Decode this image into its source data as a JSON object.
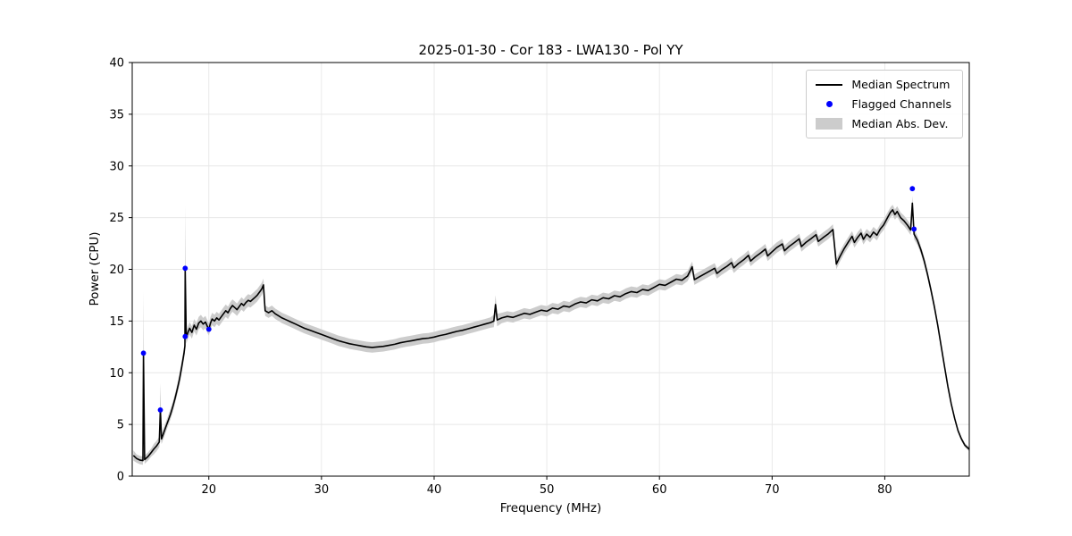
{
  "figure": {
    "title": "2025-01-30 - Cor 183 - LWA130 - Pol YY"
  },
  "chart_data": {
    "type": "line",
    "title": "2025-01-30 - Cor 183 - LWA130 - Pol YY",
    "xlabel": "Frequency (MHz)",
    "ylabel": "Power (CPU)",
    "xlim": [
      13.2,
      87.5
    ],
    "ylim": [
      0,
      40
    ],
    "xticks": [
      20,
      30,
      40,
      50,
      60,
      70,
      80
    ],
    "yticks": [
      0,
      5,
      10,
      15,
      20,
      25,
      30,
      35,
      40
    ],
    "grid": true,
    "colors": {
      "line": "#000000",
      "flagged": "#0000ff",
      "band": "#cccccc",
      "grid": "#e7e7e7",
      "frame": "#000000"
    },
    "legend": {
      "position": "upper right",
      "entries": [
        {
          "label": "Median Spectrum",
          "type": "line",
          "color": "#000000"
        },
        {
          "label": "Flagged Channels",
          "type": "marker",
          "color": "#0000ff"
        },
        {
          "label": "Median Abs. Dev.",
          "type": "band",
          "color": "#cccccc"
        }
      ]
    },
    "series": [
      {
        "name": "Median Spectrum",
        "color": "#000000",
        "x": [
          13.3,
          13.6,
          13.9,
          14.15,
          14.2,
          14.3,
          14.6,
          14.9,
          15.1,
          15.35,
          15.6,
          15.7,
          15.8,
          16.0,
          16.2,
          16.4,
          16.6,
          16.8,
          17.0,
          17.2,
          17.4,
          17.6,
          17.8,
          17.88,
          17.9,
          18.0,
          18.15,
          18.3,
          18.5,
          18.7,
          18.9,
          19.1,
          19.3,
          19.5,
          19.7,
          19.9,
          20.0,
          20.15,
          20.3,
          20.5,
          20.7,
          20.9,
          21.1,
          21.3,
          21.5,
          21.7,
          21.9,
          22.1,
          22.3,
          22.5,
          22.7,
          22.9,
          23.1,
          23.3,
          23.5,
          23.7,
          23.9,
          24.1,
          24.3,
          24.5,
          24.7,
          24.85,
          25.0,
          25.3,
          25.6,
          25.9,
          26.2,
          26.5,
          26.9,
          27.3,
          27.7,
          28.1,
          28.5,
          29.0,
          29.5,
          30.0,
          30.5,
          31.0,
          31.5,
          32.0,
          32.5,
          33.0,
          33.5,
          34.0,
          34.5,
          35.0,
          35.5,
          36.0,
          36.5,
          37.0,
          37.5,
          38.0,
          38.5,
          39.0,
          39.5,
          40.0,
          40.5,
          41.0,
          41.5,
          42.0,
          42.5,
          43.0,
          43.5,
          44.0,
          44.5,
          45.0,
          45.3,
          45.45,
          45.6,
          46.0,
          46.5,
          47.0,
          47.5,
          48.0,
          48.5,
          49.0,
          49.5,
          50.0,
          50.5,
          51.0,
          51.5,
          52.0,
          52.5,
          53.0,
          53.5,
          54.0,
          54.5,
          55.0,
          55.5,
          56.0,
          56.5,
          57.0,
          57.5,
          58.0,
          58.5,
          59.0,
          59.5,
          60.0,
          60.5,
          61.0,
          61.5,
          62.0,
          62.5,
          62.9,
          63.1,
          63.5,
          64.0,
          64.5,
          64.9,
          65.1,
          65.5,
          66.0,
          66.4,
          66.6,
          67.0,
          67.5,
          67.9,
          68.1,
          68.5,
          69.0,
          69.4,
          69.6,
          70.0,
          70.4,
          70.9,
          71.1,
          71.5,
          72.0,
          72.4,
          72.6,
          73.0,
          73.5,
          73.9,
          74.1,
          74.5,
          75.0,
          75.4,
          75.7,
          76.0,
          76.4,
          76.8,
          77.1,
          77.3,
          77.6,
          77.9,
          78.1,
          78.4,
          78.7,
          79.0,
          79.3,
          79.6,
          79.9,
          80.2,
          80.5,
          80.7,
          80.9,
          81.1,
          81.4,
          81.7,
          82.0,
          82.3,
          82.45,
          82.6,
          82.9,
          83.2,
          83.5,
          83.8,
          84.1,
          84.4,
          84.7,
          85.0,
          85.3,
          85.6,
          85.9,
          86.2,
          86.5,
          86.8,
          87.1,
          87.5
        ],
        "y": [
          2.0,
          1.7,
          1.55,
          1.5,
          11.9,
          1.6,
          1.9,
          2.3,
          2.6,
          2.9,
          3.3,
          6.5,
          3.6,
          4.2,
          4.8,
          5.4,
          6.0,
          6.7,
          7.5,
          8.4,
          9.4,
          10.6,
          11.9,
          12.6,
          20.0,
          13.4,
          13.9,
          14.3,
          13.9,
          14.6,
          14.2,
          14.8,
          15.0,
          14.7,
          14.9,
          14.4,
          14.2,
          14.8,
          15.2,
          15.0,
          15.3,
          15.1,
          15.4,
          15.7,
          16.0,
          15.8,
          16.2,
          16.5,
          16.3,
          16.1,
          16.4,
          16.7,
          16.5,
          16.8,
          17.0,
          16.9,
          17.1,
          17.3,
          17.5,
          17.8,
          18.1,
          18.5,
          16.0,
          15.8,
          16.0,
          15.7,
          15.5,
          15.3,
          15.1,
          14.9,
          14.7,
          14.5,
          14.3,
          14.1,
          13.9,
          13.7,
          13.5,
          13.3,
          13.1,
          12.95,
          12.8,
          12.7,
          12.6,
          12.5,
          12.45,
          12.5,
          12.55,
          12.65,
          12.75,
          12.9,
          13.0,
          13.1,
          13.2,
          13.3,
          13.35,
          13.45,
          13.6,
          13.7,
          13.85,
          14.0,
          14.1,
          14.25,
          14.4,
          14.55,
          14.7,
          14.85,
          15.0,
          16.6,
          15.1,
          15.3,
          15.45,
          15.35,
          15.55,
          15.75,
          15.65,
          15.85,
          16.05,
          15.95,
          16.25,
          16.15,
          16.45,
          16.35,
          16.65,
          16.85,
          16.75,
          17.05,
          16.95,
          17.25,
          17.15,
          17.45,
          17.35,
          17.65,
          17.85,
          17.75,
          18.05,
          17.95,
          18.25,
          18.55,
          18.45,
          18.75,
          19.05,
          18.95,
          19.35,
          20.25,
          19.0,
          19.25,
          19.55,
          19.85,
          20.1,
          19.6,
          19.95,
          20.3,
          20.65,
          20.15,
          20.55,
          20.95,
          21.35,
          20.8,
          21.2,
          21.6,
          21.95,
          21.3,
          21.7,
          22.1,
          22.45,
          21.8,
          22.2,
          22.6,
          22.95,
          22.2,
          22.6,
          23.0,
          23.35,
          22.7,
          23.05,
          23.45,
          23.85,
          20.5,
          21.2,
          22.0,
          22.7,
          23.2,
          22.6,
          23.1,
          23.5,
          22.9,
          23.4,
          23.1,
          23.6,
          23.3,
          23.9,
          24.3,
          24.9,
          25.5,
          25.75,
          25.3,
          25.6,
          25.0,
          24.7,
          24.3,
          23.8,
          26.4,
          23.4,
          22.8,
          21.9,
          20.8,
          19.5,
          18.0,
          16.4,
          14.6,
          12.6,
          10.6,
          8.7,
          7.0,
          5.6,
          4.4,
          3.6,
          3.0,
          2.6
        ],
        "mad": [
          0.5,
          0.4,
          0.4,
          0.4,
          6.0,
          0.4,
          0.4,
          0.4,
          0.5,
          0.5,
          0.5,
          2.5,
          0.5,
          0.5,
          0.5,
          0.5,
          0.5,
          0.5,
          0.5,
          0.5,
          0.6,
          0.6,
          0.6,
          0.7,
          6.2,
          0.6,
          0.6,
          0.6,
          0.6,
          0.6,
          0.6,
          0.6,
          0.6,
          0.6,
          0.6,
          0.6,
          0.6,
          0.6,
          0.6,
          0.6,
          0.6,
          0.6,
          0.6,
          0.6,
          0.6,
          0.6,
          0.6,
          0.6,
          0.6,
          0.6,
          0.6,
          0.6,
          0.6,
          0.6,
          0.6,
          0.6,
          0.6,
          0.6,
          0.6,
          0.6,
          0.6,
          0.6,
          0.5,
          0.5,
          0.5,
          0.5,
          0.5,
          0.5,
          0.5,
          0.5,
          0.5,
          0.5,
          0.5,
          0.5,
          0.5,
          0.5,
          0.5,
          0.5,
          0.5,
          0.5,
          0.5,
          0.5,
          0.5,
          0.5,
          0.5,
          0.5,
          0.5,
          0.5,
          0.5,
          0.5,
          0.5,
          0.5,
          0.5,
          0.5,
          0.5,
          0.5,
          0.5,
          0.5,
          0.5,
          0.5,
          0.5,
          0.5,
          0.5,
          0.5,
          0.5,
          0.5,
          0.6,
          0.9,
          0.6,
          0.5,
          0.5,
          0.5,
          0.5,
          0.5,
          0.5,
          0.5,
          0.5,
          0.5,
          0.5,
          0.5,
          0.5,
          0.5,
          0.5,
          0.5,
          0.5,
          0.5,
          0.5,
          0.5,
          0.5,
          0.5,
          0.5,
          0.5,
          0.5,
          0.5,
          0.5,
          0.5,
          0.5,
          0.5,
          0.5,
          0.5,
          0.5,
          0.5,
          0.5,
          0.5,
          0.5,
          0.5,
          0.5,
          0.5,
          0.5,
          0.5,
          0.5,
          0.5,
          0.5,
          0.5,
          0.5,
          0.5,
          0.5,
          0.5,
          0.5,
          0.5,
          0.5,
          0.5,
          0.5,
          0.5,
          0.5,
          0.5,
          0.5,
          0.5,
          0.5,
          0.5,
          0.5,
          0.5,
          0.5,
          0.5,
          0.5,
          0.5,
          0.5,
          0.5,
          0.5,
          0.5,
          0.5,
          0.5,
          0.5,
          0.5,
          0.5,
          0.5,
          0.5,
          0.5,
          0.5,
          0.5,
          0.5,
          0.5,
          0.5,
          0.5,
          0.5,
          0.5,
          0.5,
          0.5,
          0.5,
          0.5,
          0.5,
          0.7,
          0.5,
          0.45,
          0.4,
          0.4,
          0.4,
          0.35,
          0.35,
          0.3,
          0.3,
          0.3,
          0.25,
          0.25,
          0.2,
          0.2,
          0.2,
          0.2,
          0.2
        ]
      }
    ],
    "flagged_channels": {
      "name": "Flagged Channels",
      "points": [
        [
          14.2,
          11.9
        ],
        [
          15.7,
          6.4
        ],
        [
          17.9,
          13.5
        ],
        [
          17.9,
          20.1
        ],
        [
          20.0,
          14.2
        ],
        [
          82.45,
          27.8
        ],
        [
          82.6,
          23.9
        ]
      ]
    }
  }
}
